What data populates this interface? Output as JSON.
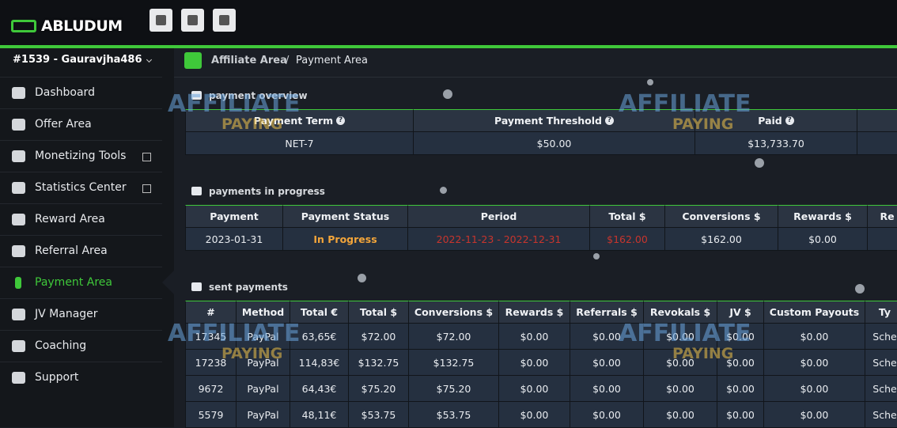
{
  "header": {
    "logo": "ABLUDUM"
  },
  "account": "#1539 - Gauravjha486",
  "breadcrumb": [
    "Affiliate Area",
    "Payment Area"
  ],
  "nav": [
    "Dashboard",
    "Offer Area",
    "Monetizing Tools",
    "Statistics Center",
    "Reward Area",
    "Referral Area",
    "Payment Area",
    "JV Manager",
    "Coaching",
    "Support"
  ],
  "watermark": {
    "line1": "AFFILIATE",
    "line2": "PAYING"
  },
  "sections": [
    {
      "title": "payment overview",
      "columns": [
        "Payment Term",
        "Payment Threshold",
        "Paid"
      ],
      "rows": [
        [
          "NET-7",
          "$50.00",
          "$13,733.70"
        ]
      ]
    },
    {
      "title": "payments in progress",
      "columns": [
        "Payment",
        "Payment Status",
        "Period",
        "Total $",
        "Conversions $",
        "Rewards $",
        "Re"
      ],
      "rows": [
        [
          "2023-01-31",
          "In Progress",
          "2022-11-23 - 2022-12-31",
          "$162.00",
          "$162.00",
          "$0.00"
        ]
      ]
    },
    {
      "title": "sent payments",
      "columns": [
        "#",
        "Method",
        "Total €",
        "Total $",
        "Conversions $",
        "Rewards $",
        "Referrals $",
        "Revokals $",
        "JV $",
        "Custom Payouts",
        "Ty"
      ],
      "rows": [
        [
          "17345",
          "PayPal",
          "63,65€",
          "$72.00",
          "$72.00",
          "$0.00",
          "$0.00",
          "$0.00",
          "$0.00",
          "$0.00",
          "Sche"
        ],
        [
          "17238",
          "PayPal",
          "114,83€",
          "$132.75",
          "$132.75",
          "$0.00",
          "$0.00",
          "$0.00",
          "$0.00",
          "$0.00",
          "Sche"
        ],
        [
          "9672",
          "PayPal",
          "64,43€",
          "$75.20",
          "$75.20",
          "$0.00",
          "$0.00",
          "$0.00",
          "$0.00",
          "$0.00",
          "Sche"
        ],
        [
          "5579",
          "PayPal",
          "48,11€",
          "$53.75",
          "$53.75",
          "$0.00",
          "$0.00",
          "$0.00",
          "$0.00",
          "$0.00",
          "Sche"
        ]
      ]
    }
  ]
}
